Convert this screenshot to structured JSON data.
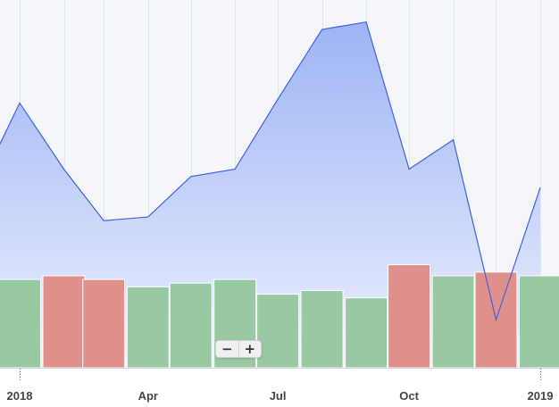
{
  "chart_data": {
    "type": "line+bar",
    "x_tick_labels": [
      {
        "label": "2018",
        "date": "2018-01-01",
        "major": true
      },
      {
        "label": "Apr",
        "date": "2018-04-01",
        "major": false
      },
      {
        "label": "Jul",
        "date": "2018-07-01",
        "major": false
      },
      {
        "label": "Oct",
        "date": "2018-10-01",
        "major": false
      },
      {
        "label": "2019",
        "date": "2019-01-01",
        "major": true
      }
    ],
    "line_series": {
      "dates": [
        "2017-12-01",
        "2018-01-01",
        "2018-02-01",
        "2018-03-01",
        "2018-04-01",
        "2018-05-01",
        "2018-06-01",
        "2018-07-01",
        "2018-08-01",
        "2018-09-01",
        "2018-10-01",
        "2018-11-01",
        "2018-12-01",
        "2019-01-01"
      ],
      "values": [
        47,
        72,
        54,
        40,
        41,
        52,
        54,
        73,
        92,
        94,
        54,
        62,
        13,
        49
      ],
      "line_color": "#3f63e0",
      "fill_top_color": "#9db4f5",
      "fill_bottom_color": "#eef1fd"
    },
    "bar_series": {
      "dates": [
        "2017-12-01",
        "2018-01-01",
        "2018-02-01",
        "2018-03-01",
        "2018-04-01",
        "2018-05-01",
        "2018-06-01",
        "2018-07-01",
        "2018-08-01",
        "2018-09-01",
        "2018-10-01",
        "2018-11-01",
        "2018-12-01",
        "2019-01-01"
      ],
      "values": [
        20,
        24,
        25,
        24,
        22,
        23,
        24,
        20,
        21,
        19,
        28,
        25,
        26,
        25
      ],
      "directions": [
        "up",
        "up",
        "down",
        "down",
        "up",
        "up",
        "up",
        "up",
        "up",
        "up",
        "down",
        "up",
        "down",
        "up"
      ],
      "up_color": "#98c9a3",
      "down_color": "#e0908a"
    },
    "y_range": [
      0,
      100
    ],
    "grid": {
      "x": true,
      "y": false
    },
    "plot_background": "#f5f6fa"
  },
  "zoom_controls": {
    "zoom_out_label": "−",
    "zoom_in_label": "+"
  }
}
